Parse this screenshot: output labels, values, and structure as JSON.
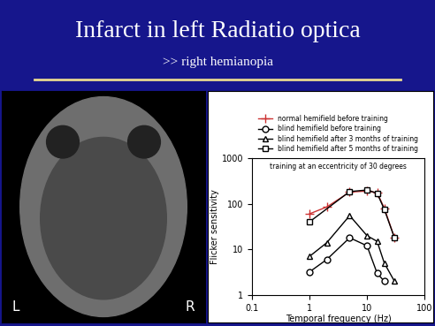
{
  "slide": {
    "title": "Infarct in left Radiatio optica",
    "subtitle": ">> right hemianopia"
  },
  "image": {
    "left_label": "L",
    "right_label": "R"
  },
  "chart_data": {
    "type": "line",
    "x_label": "Temporal frequency (Hz)",
    "y_label": "Flicker sensitivity",
    "annotation": "training at an eccentricity of 30 degrees",
    "log": true,
    "legend": "top",
    "xlim": [
      0.1,
      100
    ],
    "xticks": [
      0.1,
      1,
      10,
      100
    ],
    "ylim": [
      1,
      1000
    ],
    "yticks": [
      1,
      10,
      100,
      1000
    ],
    "series": [
      {
        "name": "normal hemifield before training",
        "color": "#cc3333",
        "marker": "plus",
        "line_style": "solid",
        "x": [
          1,
          2,
          5,
          10,
          15,
          20,
          30
        ],
        "values": [
          60,
          85,
          180,
          190,
          175,
          80,
          18
        ]
      },
      {
        "name": "blind hemifield before training",
        "color": "#000000",
        "marker": "circle",
        "line_style": "solid",
        "x": [
          1,
          2,
          5,
          10,
          15,
          20
        ],
        "values": [
          3.2,
          6,
          18,
          12,
          3,
          2
        ]
      },
      {
        "name": "blind hemifield after 3 months of training",
        "color": "#000000",
        "marker": "triangle",
        "line_style": "solid",
        "x": [
          1,
          2,
          5,
          10,
          15,
          20,
          30
        ],
        "values": [
          7,
          14,
          55,
          20,
          15,
          5,
          2
        ]
      },
      {
        "name": "blind hemifield after 5 months of training",
        "color": "#000000",
        "marker": "square",
        "line_style": "solid",
        "x": [
          1,
          5,
          10,
          15,
          20,
          30
        ],
        "values": [
          40,
          185,
          200,
          170,
          75,
          18
        ]
      }
    ]
  }
}
